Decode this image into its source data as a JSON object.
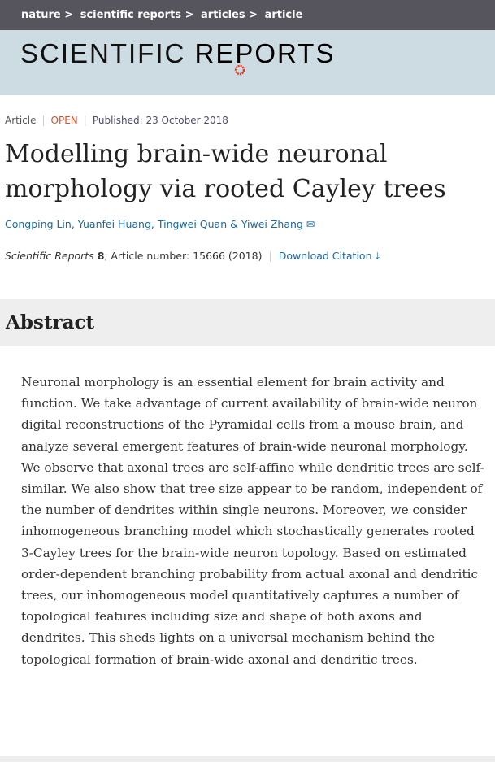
{
  "breadcrumb": [
    "nature",
    "scientific reports",
    "articles",
    "article"
  ],
  "logo": {
    "text_light": "SCIENTIFIC ",
    "text_bold": "REPORTS"
  },
  "meta": {
    "type": "Article",
    "access": "OPEN",
    "published": "Published: 23 October 2018"
  },
  "title": "Modelling brain-wide neuronal morphology via rooted Cayley trees",
  "authors": [
    "Congping Lin",
    "Yuanfei Huang",
    "Tingwei Quan",
    "Yiwei Zhang"
  ],
  "citation": {
    "journal": "Scientific Reports",
    "volume": "8",
    "article_number": ", Article number: 15666 (2018)",
    "download": "Download Citation"
  },
  "abstract": {
    "heading": "Abstract",
    "text": "Neuronal morphology is an essential element for brain activity and function. We take advantage of current availability of brain-wide neuron digital reconstructions of the Pyramidal cells from a mouse brain, and analyze several emergent features of brain-wide neuronal morphology. We observe that axonal trees are self-affine while dendritic trees are self-similar. We also show that tree size appear to be random, independent of the number of dendrites within single neurons. Moreover, we consider inhomogeneous branching model which stochastically generates rooted 3-Cayley trees for the brain-wide neuron topology. Based on estimated order-dependent branching probability from actual axonal and dendritic trees, our inhomogeneous model quantitatively captures a number of topological features including size and shape of both axons and dendrites. This sheds lights on a universal mechanism behind the topological formation of brain-wide axonal and dendritic trees."
  }
}
